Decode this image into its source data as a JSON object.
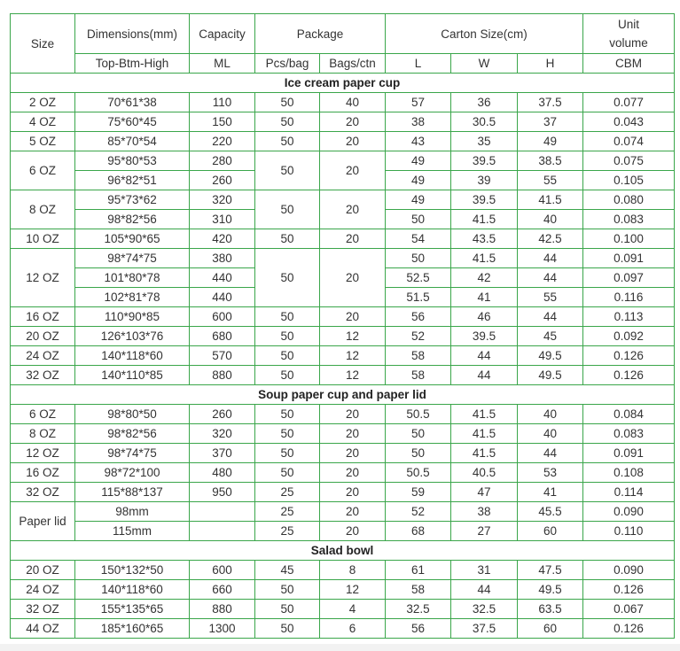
{
  "header": {
    "row1": [
      "Size",
      "Dimensions(mm)",
      "Capacity",
      "Package",
      "Carton Size(cm)",
      "Unit volume"
    ],
    "row2": [
      "Top-Btm-High",
      "ML",
      "Pcs/bag",
      "Bags/ctn",
      "L",
      "W",
      "H",
      "CBM"
    ]
  },
  "border_color": "#3aa64a",
  "sections": [
    {
      "title": "Ice cream paper cup",
      "rows": [
        [
          "2 OZ",
          "70*61*38",
          "110",
          "50",
          "40",
          "57",
          "36",
          "37.5",
          "0.077"
        ],
        [
          "4 OZ",
          "75*60*45",
          "150",
          "50",
          "20",
          "38",
          "30.5",
          "37",
          "0.043"
        ],
        [
          "5 OZ",
          "85*70*54",
          "220",
          "50",
          "20",
          "43",
          "35",
          "49",
          "0.074"
        ],
        [
          "6 OZ",
          "95*80*53",
          "280",
          "50",
          "20",
          "49",
          "39.5",
          "38.5",
          "0.075"
        ],
        [
          null,
          "96*82*51",
          "260",
          null,
          null,
          "49",
          "39",
          "55",
          "0.105"
        ],
        [
          "8 OZ",
          "95*73*62",
          "320",
          "50",
          "20",
          "49",
          "39.5",
          "41.5",
          "0.080"
        ],
        [
          null,
          "98*82*56",
          "310",
          null,
          null,
          "50",
          "41.5",
          "40",
          "0.083"
        ],
        [
          "10 OZ",
          "105*90*65",
          "420",
          "50",
          "20",
          "54",
          "43.5",
          "42.5",
          "0.100"
        ],
        [
          "12 OZ",
          "98*74*75",
          "380",
          "50",
          "20",
          "50",
          "41.5",
          "44",
          "0.091"
        ],
        [
          null,
          "101*80*78",
          "440",
          null,
          null,
          "52.5",
          "42",
          "44",
          "0.097"
        ],
        [
          null,
          "102*81*78",
          "440",
          null,
          null,
          "51.5",
          "41",
          "55",
          "0.116"
        ],
        [
          "16 OZ",
          "110*90*85",
          "600",
          "50",
          "20",
          "56",
          "46",
          "44",
          "0.113"
        ],
        [
          "20 OZ",
          "126*103*76",
          "680",
          "50",
          "12",
          "52",
          "39.5",
          "45",
          "0.092"
        ],
        [
          "24 OZ",
          "140*118*60",
          "570",
          "50",
          "12",
          "58",
          "44",
          "49.5",
          "0.126"
        ],
        [
          "32 OZ",
          "140*110*85",
          "880",
          "50",
          "12",
          "58",
          "44",
          "49.5",
          "0.126"
        ]
      ]
    },
    {
      "title": "Soup paper cup and paper lid",
      "rows": [
        [
          "6 OZ",
          "98*80*50",
          "260",
          "50",
          "20",
          "50.5",
          "41.5",
          "40",
          "0.084"
        ],
        [
          "8 OZ",
          "98*82*56",
          "320",
          "50",
          "20",
          "50",
          "41.5",
          "40",
          "0.083"
        ],
        [
          "12 OZ",
          "98*74*75",
          "370",
          "50",
          "20",
          "50",
          "41.5",
          "44",
          "0.091"
        ],
        [
          "16 OZ",
          "98*72*100",
          "480",
          "50",
          "20",
          "50.5",
          "40.5",
          "53",
          "0.108"
        ],
        [
          "32 OZ",
          "115*88*137",
          "950",
          "25",
          "20",
          "59",
          "47",
          "41",
          "0.114"
        ],
        [
          "Paper lid",
          "98mm",
          "",
          "25",
          "20",
          "52",
          "38",
          "45.5",
          "0.090"
        ],
        [
          null,
          "115mm",
          "",
          "25",
          "20",
          "68",
          "27",
          "60",
          "0.110"
        ]
      ]
    },
    {
      "title": "Salad bowl",
      "rows": [
        [
          "20 OZ",
          "150*132*50",
          "600",
          "45",
          "8",
          "61",
          "31",
          "47.5",
          "0.090"
        ],
        [
          "24 OZ",
          "140*118*60",
          "660",
          "50",
          "12",
          "58",
          "44",
          "49.5",
          "0.126"
        ],
        [
          "32 OZ",
          "155*135*65",
          "880",
          "50",
          "4",
          "32.5",
          "32.5",
          "63.5",
          "0.067"
        ],
        [
          "44 OZ",
          "185*160*65",
          "1300",
          "50",
          "6",
          "56",
          "37.5",
          "60",
          "0.126"
        ]
      ]
    }
  ]
}
